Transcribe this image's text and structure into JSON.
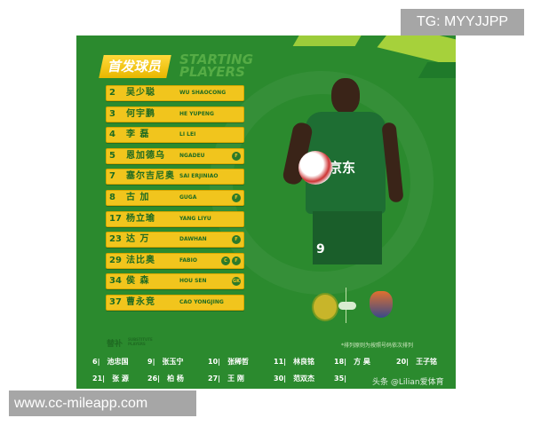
{
  "header": {
    "title_cn": "首发球员",
    "title_en_line1": "STARTING",
    "title_en_line2": "PLAYERS"
  },
  "starting_players": [
    {
      "number": "2",
      "name_cn": "吴少聪",
      "name_en": "WU SHAOCONG",
      "badges": []
    },
    {
      "number": "3",
      "name_cn": "何宇鹏",
      "name_en": "HE YUPENG",
      "badges": []
    },
    {
      "number": "4",
      "name_cn": "李 磊",
      "name_en": "LI LEI",
      "badges": []
    },
    {
      "number": "5",
      "name_cn": "恩加德乌",
      "name_en": "NGADEU",
      "badges": [
        "F"
      ]
    },
    {
      "number": "7",
      "name_cn": "塞尔吉尼奥",
      "name_en": "SAI ERJINIAO",
      "badges": []
    },
    {
      "number": "8",
      "name_cn": "古 加",
      "name_en": "GUGA",
      "badges": [
        "F"
      ]
    },
    {
      "number": "17",
      "name_cn": "杨立瑜",
      "name_en": "YANG LIYU",
      "badges": []
    },
    {
      "number": "23",
      "name_cn": "达 万",
      "name_en": "DAWHAN",
      "badges": [
        "F"
      ]
    },
    {
      "number": "29",
      "name_cn": "法比奥",
      "name_en": "FABIO",
      "badges": [
        "C",
        "F"
      ]
    },
    {
      "number": "34",
      "name_cn": "侯 森",
      "name_en": "HOU SEN",
      "badges": [
        "GK"
      ]
    },
    {
      "number": "37",
      "name_cn": "曹永竞",
      "name_en": "CAO YONGJING",
      "badges": []
    }
  ],
  "substitutes": {
    "title_cn": "替补",
    "title_en_line1": "SUBSTITUTE",
    "title_en_line2": "PLAYERS",
    "note": "*排列原则为按照号码依次排列",
    "row1": [
      {
        "number": "6|",
        "name": "池忠国"
      },
      {
        "number": "9|",
        "name": "张玉宁"
      },
      {
        "number": "10|",
        "name": "张稀哲"
      },
      {
        "number": "11|",
        "name": "林良铭"
      },
      {
        "number": "18|",
        "name": "方 昊"
      },
      {
        "number": "20|",
        "name": "王子铭"
      }
    ],
    "row2": [
      {
        "number": "21|",
        "name": "张 源"
      },
      {
        "number": "26|",
        "name": "柏 杨"
      },
      {
        "number": "27|",
        "name": "王 刚"
      },
      {
        "number": "30|",
        "name": "范双杰"
      },
      {
        "number": "35|",
        "name": ""
      }
    ]
  },
  "player_photo": {
    "shirt_sponsor": "京东",
    "shirt_number": "9"
  },
  "watermarks": {
    "inner": "头条 @Lilian爱体育",
    "top_right": "TG: MYYJJPP",
    "bottom_left": "www.cc-mileapp.com"
  },
  "colors": {
    "panel_green": "#2b8a2e",
    "row_yellow": "#f1c51d",
    "text_green": "#1f6b22"
  }
}
